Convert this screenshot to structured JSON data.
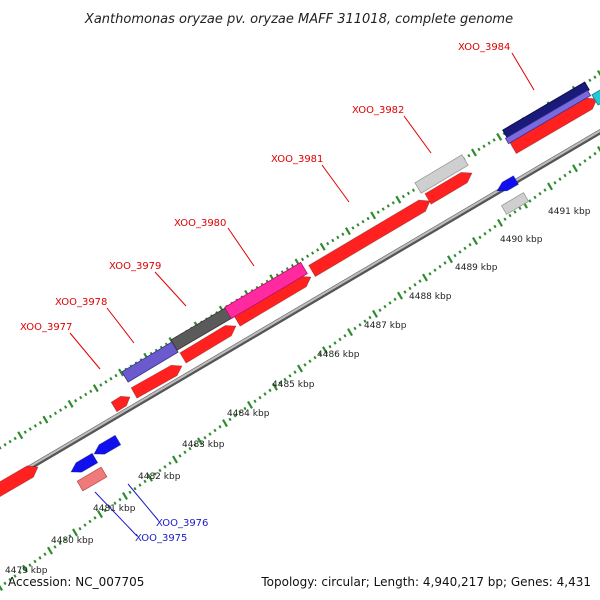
{
  "title": "Xanthomonas oryzae pv. oryzae MAFF 311018, complete genome",
  "footer": {
    "accession": "Accession: NC_007705",
    "summary": "Topology: circular; Length: 4,940,217 bp; Genes: 4,431"
  },
  "colors": {
    "forward_gene": "#ff0000",
    "label_forward": "#e00000",
    "label_reverse": "#1a1acc",
    "reverse_gene": "#0000ee",
    "backbone": "#999999",
    "ticks": "#2e8b2e"
  },
  "kbp_labels": [
    "4479 kbp",
    "4480 kbp",
    "4481 kbp",
    "4482 kbp",
    "4483 kbp",
    "4484 kbp",
    "4485 kbp",
    "4486 kbp",
    "4487 kbp",
    "4488 kbp",
    "4489 kbp",
    "4490 kbp",
    "4491 kbp"
  ],
  "genes": [
    {
      "id": "XOO_3975",
      "label": "XOO_3975",
      "strand": "reverse"
    },
    {
      "id": "XOO_3976",
      "label": "XOO_3976",
      "strand": "reverse"
    },
    {
      "id": "XOO_3977",
      "label": "XOO_3977",
      "strand": "forward"
    },
    {
      "id": "XOO_3978",
      "label": "XOO_3978",
      "strand": "forward"
    },
    {
      "id": "XOO_3979",
      "label": "XOO_3979",
      "strand": "forward"
    },
    {
      "id": "XOO_3980",
      "label": "XOO_3980",
      "strand": "forward"
    },
    {
      "id": "XOO_3981",
      "label": "XOO_3981",
      "strand": "forward"
    },
    {
      "id": "XOO_3982",
      "label": "XOO_3982",
      "strand": "forward"
    },
    {
      "id": "XOO_3984",
      "label": "XOO_3984",
      "strand": "forward"
    }
  ]
}
